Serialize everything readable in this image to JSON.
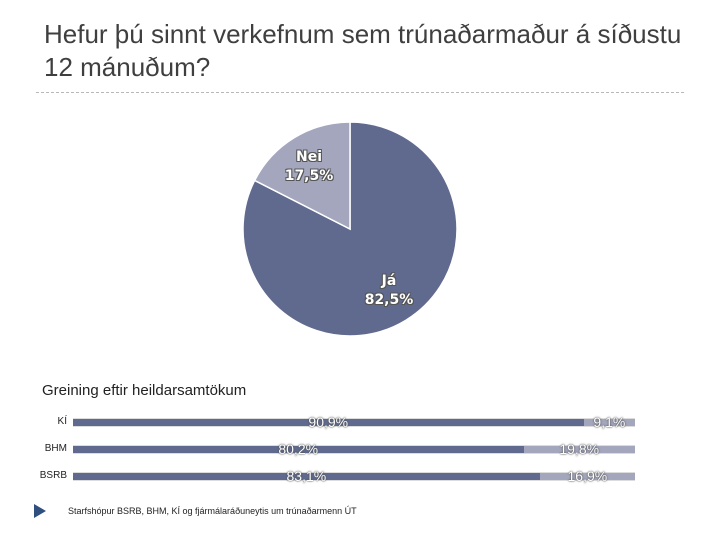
{
  "title": "Hefur þú sinnt verkefnum sem trúnaðarmaður á síðustu 12 mánuðum?",
  "colors": {
    "ja": "#5f6a8e",
    "nei": "#a3a6bd",
    "bar_bg": "#dcdcdc"
  },
  "chart_data": [
    {
      "type": "pie",
      "slices": [
        {
          "name": "Já",
          "value": 82.5,
          "label": "82,5%"
        },
        {
          "name": "Nei",
          "value": 17.5,
          "label": "17,5%"
        }
      ]
    },
    {
      "type": "bar",
      "orientation": "horizontal",
      "stacked": true,
      "subtitle": "Greining eftir heildarsamtökum",
      "categories": [
        "KÍ",
        "BHM",
        "BSRB"
      ],
      "series": [
        {
          "values": [
            90.9,
            80.2,
            83.1
          ],
          "labels": [
            "90,9%",
            "80,2%",
            "83,1%"
          ]
        },
        {
          "values": [
            9.1,
            19.8,
            16.9
          ],
          "labels": [
            "9,1%",
            "19,8%",
            "16,9%"
          ]
        }
      ]
    }
  ],
  "footnote": "Starfshópur BSRB, BHM, KÍ og fjármálaráðuneytis um trúnaðarmenn ÚT"
}
